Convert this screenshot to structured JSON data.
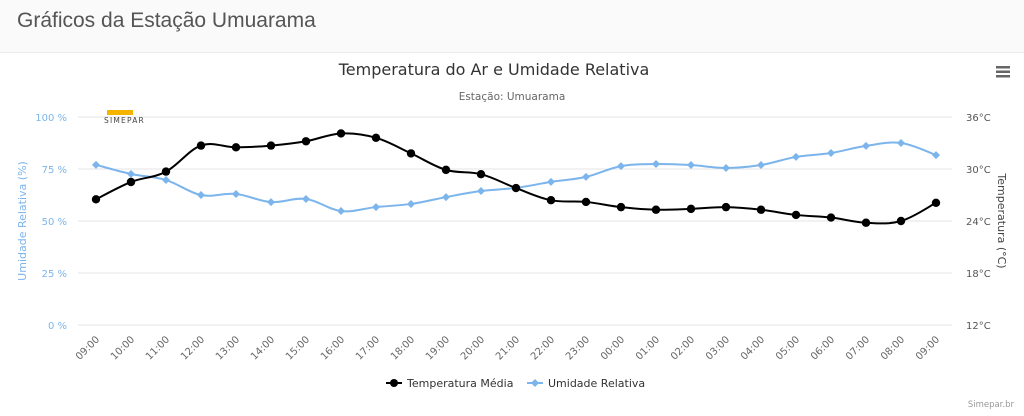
{
  "page": {
    "title": "Gráficos da Estação Umuarama"
  },
  "menu": {
    "icon": "hamburger-menu-icon"
  },
  "logo": {
    "text": "SIMEPAR"
  },
  "credits": "Simepar.br",
  "colors": {
    "temperature": "#000000",
    "humidity": "#7cb5ec",
    "left_axis": "#7cb5ec",
    "right_axis": "#555555",
    "grid": "#e6e6e6",
    "logo_accent": "#f5b400"
  },
  "chart_data": {
    "type": "line",
    "title": "Temperatura do Ar e Umidade Relativa",
    "subtitle": "Estação: Umuarama",
    "xlabel": "",
    "categories": [
      "09:00",
      "10:00",
      "11:00",
      "12:00",
      "13:00",
      "14:00",
      "15:00",
      "16:00",
      "17:00",
      "18:00",
      "19:00",
      "20:00",
      "21:00",
      "22:00",
      "23:00",
      "00:00",
      "01:00",
      "02:00",
      "03:00",
      "04:00",
      "05:00",
      "06:00",
      "07:00",
      "08:00",
      "09:00"
    ],
    "y_axes": [
      {
        "id": "humidity",
        "label": "Umidade Relativa (%)",
        "side": "left",
        "range": [
          0,
          100
        ],
        "ticks": [
          0,
          25,
          50,
          75,
          100
        ],
        "tick_labels": [
          "0 %",
          "25 %",
          "50 %",
          "75 %",
          "100 %"
        ]
      },
      {
        "id": "temperature",
        "label": "Temperatura (°C)",
        "side": "right",
        "range": [
          12,
          36
        ],
        "ticks": [
          12,
          18,
          24,
          30,
          36
        ],
        "tick_labels": [
          "12°C",
          "18°C",
          "24°C",
          "30°C",
          "36°C"
        ]
      }
    ],
    "series": [
      {
        "name": "Temperatura Média",
        "axis": "temperature",
        "marker": "circle",
        "values": [
          26.5,
          28.5,
          29.7,
          32.7,
          32.5,
          32.7,
          33.2,
          34.1,
          33.6,
          31.8,
          29.9,
          29.4,
          27.8,
          26.4,
          26.2,
          25.6,
          25.3,
          25.4,
          25.6,
          25.3,
          24.7,
          24.4,
          23.8,
          24.0,
          26.1
        ]
      },
      {
        "name": "Umidade Relativa",
        "axis": "humidity",
        "marker": "diamond",
        "values": [
          77,
          72.6,
          69.7,
          62.5,
          63,
          59.1,
          60.6,
          54.8,
          56.7,
          58.2,
          61.5,
          64.4,
          65.9,
          68.8,
          71.2,
          76.4,
          77.4,
          76.9,
          75.5,
          76.9,
          80.8,
          82.7,
          86.1,
          87.5,
          81.7
        ]
      }
    ],
    "grid": true,
    "legend": "bottom-center"
  }
}
